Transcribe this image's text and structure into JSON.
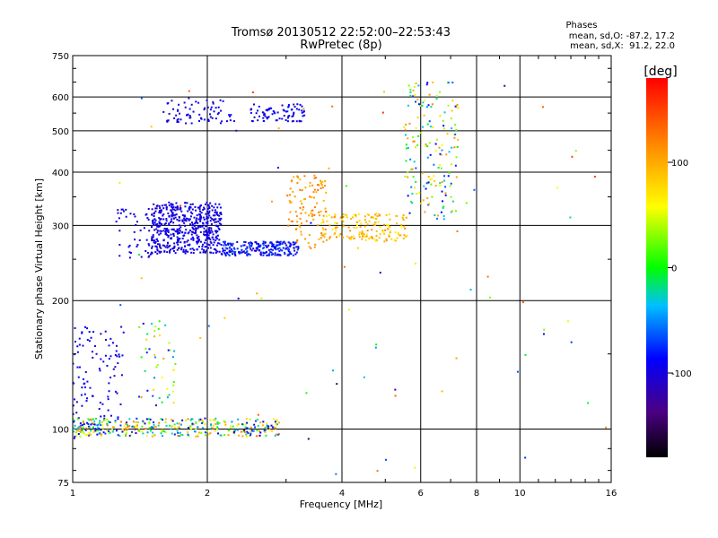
{
  "chart_data": {
    "type": "scatter",
    "title": "Tromsø 20130512 22:52:00–22:53:43",
    "subtitle": "RwPretec (8p)",
    "xlabel": "Frequency [MHz]",
    "ylabel": "Stationary phase Virtual Height [km]",
    "x_scale": "log",
    "y_scale": "log",
    "xlim": [
      1,
      16
    ],
    "ylim": [
      75,
      750
    ],
    "x_ticks": [
      1,
      2,
      4,
      6,
      8,
      10,
      16
    ],
    "y_ticks": [
      75,
      100,
      200,
      300,
      400,
      500,
      600,
      750
    ],
    "grid": true,
    "stats": {
      "title": "Phases",
      "line_o": "mean, sd,O: -87.2, 17.2",
      "line_x": "mean, sd,X:  91.2, 22.0"
    },
    "colorbar": {
      "label": "[deg]",
      "range": [
        -180,
        180
      ],
      "ticks": [
        100,
        0,
        -100
      ],
      "colors": [
        "#000000",
        "#4b0082",
        "#0000ff",
        "#00ffff",
        "#00ff00",
        "#ffff00",
        "#ff8c00",
        "#ff0000"
      ]
    },
    "segments": [
      {
        "xrange": [
          1.5,
          2.15
        ],
        "yrange": [
          258,
          340
        ],
        "count": 520,
        "phase": [
          -110,
          -85
        ]
      },
      {
        "xrange": [
          2.15,
          3.2
        ],
        "yrange": [
          255,
          275
        ],
        "count": 220,
        "phase": [
          -110,
          -60
        ]
      },
      {
        "xrange": [
          1.25,
          1.55
        ],
        "yrange": [
          250,
          330
        ],
        "count": 50,
        "phase": [
          -110,
          -90
        ]
      },
      {
        "xrange": [
          3.0,
          3.7
        ],
        "yrange": [
          265,
          395
        ],
        "count": 110,
        "phase": [
          90,
          130
        ]
      },
      {
        "xrange": [
          3.6,
          5.6
        ],
        "yrange": [
          275,
          320
        ],
        "count": 160,
        "phase": [
          60,
          120
        ]
      },
      {
        "xrange": [
          5.5,
          7.3
        ],
        "yrange": [
          310,
          650
        ],
        "count": 170,
        "phase": [
          -100,
          120
        ]
      },
      {
        "xrange": [
          1.6,
          2.3
        ],
        "yrange": [
          520,
          590
        ],
        "count": 70,
        "phase": [
          -110,
          -80
        ]
      },
      {
        "xrange": [
          2.5,
          3.3
        ],
        "yrange": [
          525,
          580
        ],
        "count": 80,
        "phase": [
          -110,
          -80
        ]
      },
      {
        "xrange": [
          1.0,
          1.3
        ],
        "yrange": [
          95,
          175
        ],
        "count": 110,
        "phase": [
          -110,
          -80
        ]
      },
      {
        "xrange": [
          1.4,
          1.7
        ],
        "yrange": [
          115,
          185
        ],
        "count": 45,
        "phase": [
          -100,
          110
        ]
      },
      {
        "xrange": [
          1.0,
          2.9
        ],
        "yrange": [
          96,
          106
        ],
        "count": 360,
        "phase": [
          -110,
          130
        ]
      },
      {
        "xrange": [
          1.2,
          16.0
        ],
        "yrange": [
          75,
          650
        ],
        "count": 80,
        "phase": [
          -150,
          160
        ]
      }
    ]
  }
}
